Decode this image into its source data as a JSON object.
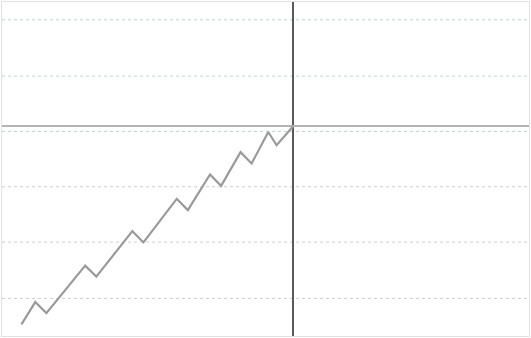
{
  "chart_data": {
    "type": "line",
    "x": [
      -9.8,
      -9.3,
      -8.9,
      -7.5,
      -7.1,
      -5.8,
      -5.4,
      -4.2,
      -3.8,
      -3.0,
      -2.6,
      -1.9,
      -1.5,
      -0.9,
      -0.6,
      0
    ],
    "values": [
      -7.18,
      -6.37,
      -6.77,
      -5.05,
      -5.45,
      -3.8,
      -4.21,
      -2.63,
      -3.04,
      -1.75,
      -2.16,
      -0.94,
      -1.35,
      -0.21,
      -0.69,
      0
    ],
    "color": "#9a9a9a",
    "xlim": [
      -10.5,
      8.5
    ],
    "ylim": [
      -7.6,
      4.5
    ],
    "xticks": [
      0
    ],
    "yticks": [
      0
    ],
    "grid": true,
    "tick_labels": false
  }
}
